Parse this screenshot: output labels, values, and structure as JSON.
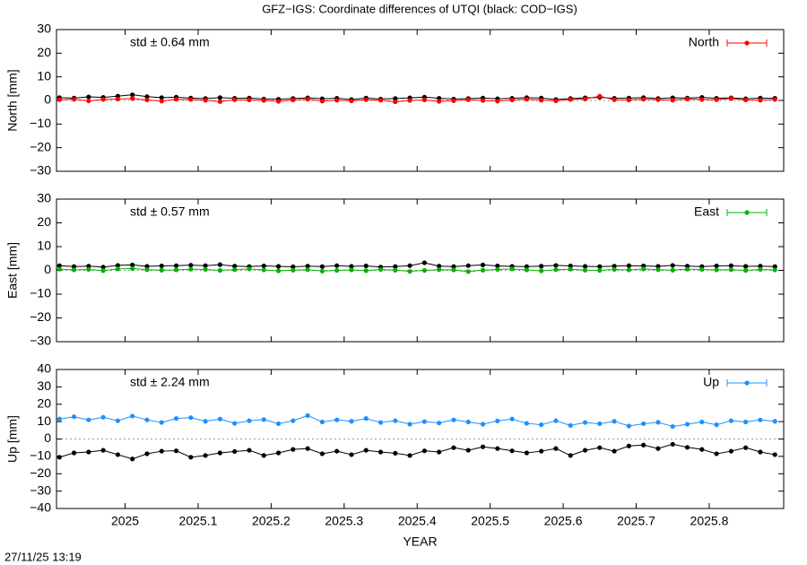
{
  "title": "GFZ−IGS: Coordinate differences of UTQI (black: COD−IGS)",
  "footer": "27/11/25 13:19",
  "chart_data": [
    {
      "type": "line",
      "y_label": "North [mm]",
      "annotation": "std ± 0.64 mm",
      "legend": "top-right",
      "zero_line": true,
      "xlim": [
        2024.906,
        2025.902
      ],
      "xticks": [
        2025,
        2025.1,
        2025.2,
        2025.3,
        2025.4,
        2025.5,
        2025.6,
        2025.7,
        2025.8
      ],
      "ylim": [
        -30,
        30
      ],
      "yticks": [
        30,
        20,
        10,
        0,
        {
          "value": -10,
          "label": "−10"
        },
        {
          "value": -20,
          "label": "−20"
        },
        {
          "value": -30,
          "label": "−30"
        }
      ],
      "x": [
        2024.91,
        2024.93,
        2024.95,
        2024.97,
        2024.99,
        2025.01,
        2025.03,
        2025.05,
        2025.07,
        2025.09,
        2025.11,
        2025.13,
        2025.15,
        2025.17,
        2025.19,
        2025.21,
        2025.23,
        2025.25,
        2025.27,
        2025.29,
        2025.31,
        2025.33,
        2025.35,
        2025.37,
        2025.39,
        2025.41,
        2025.43,
        2025.45,
        2025.47,
        2025.49,
        2025.51,
        2025.53,
        2025.55,
        2025.57,
        2025.59,
        2025.61,
        2025.63,
        2025.65,
        2025.67,
        2025.69,
        2025.71,
        2025.73,
        2025.75,
        2025.77,
        2025.79,
        2025.81,
        2025.83,
        2025.85,
        2025.87,
        2025.89
      ],
      "series": [
        {
          "color": "#000000",
          "values": [
            1.2,
            1.0,
            1.5,
            1.3,
            1.8,
            2.4,
            1.6,
            1.2,
            1.4,
            1.0,
            0.8,
            1.2,
            0.9,
            1.0,
            0.6,
            0.5,
            0.8,
            1.1,
            0.7,
            0.9,
            0.4,
            1.0,
            0.6,
            0.8,
            1.1,
            1.4,
            0.9,
            0.6,
            0.8,
            1.0,
            0.7,
            0.9,
            1.2,
            1.0,
            0.4,
            0.8,
            1.1,
            1.3,
            0.9,
            1.0,
            1.2,
            0.8,
            1.1,
            1.0,
            1.3,
            0.9,
            1.1,
            0.7,
            1.0,
            0.9
          ]
        },
        {
          "name": "North",
          "color": "#ff0000",
          "values": [
            0.3,
            0.5,
            -0.2,
            0.4,
            0.6,
            0.8,
            0.2,
            -0.3,
            0.5,
            0.4,
            0.1,
            -0.5,
            0.3,
            0.2,
            0.0,
            -0.4,
            0.2,
            0.5,
            -0.3,
            0.1,
            -0.2,
            0.3,
            0.1,
            -0.6,
            0.0,
            0.2,
            -0.4,
            -0.1,
            0.3,
            0.0,
            -0.3,
            0.2,
            0.5,
            0.1,
            -0.2,
            0.4,
            0.6,
            1.8,
            0.3,
            0.2,
            0.5,
            0.3,
            0.1,
            0.6,
            0.4,
            0.3,
            0.8,
            0.2,
            0.1,
            0.4
          ]
        }
      ]
    },
    {
      "type": "line",
      "y_label": "East [mm]",
      "annotation": "std ± 0.57 mm",
      "legend": "top-right",
      "zero_line": true,
      "xlim": [
        2024.906,
        2025.902
      ],
      "xticks": [
        2025,
        2025.1,
        2025.2,
        2025.3,
        2025.4,
        2025.5,
        2025.6,
        2025.7,
        2025.8
      ],
      "ylim": [
        -30,
        30
      ],
      "yticks": [
        30,
        20,
        10,
        0,
        {
          "value": -10,
          "label": "−10"
        },
        {
          "value": -20,
          "label": "−20"
        },
        {
          "value": -30,
          "label": "−30"
        }
      ],
      "x": [
        2024.91,
        2024.93,
        2024.95,
        2024.97,
        2024.99,
        2025.01,
        2025.03,
        2025.05,
        2025.07,
        2025.09,
        2025.11,
        2025.13,
        2025.15,
        2025.17,
        2025.19,
        2025.21,
        2025.23,
        2025.25,
        2025.27,
        2025.29,
        2025.31,
        2025.33,
        2025.35,
        2025.37,
        2025.39,
        2025.41,
        2025.43,
        2025.45,
        2025.47,
        2025.49,
        2025.51,
        2025.53,
        2025.55,
        2025.57,
        2025.59,
        2025.61,
        2025.63,
        2025.65,
        2025.67,
        2025.69,
        2025.71,
        2025.73,
        2025.75,
        2025.77,
        2025.79,
        2025.81,
        2025.83,
        2025.85,
        2025.87,
        2025.89
      ],
      "series": [
        {
          "color": "#000000",
          "values": [
            2.0,
            1.6,
            1.8,
            1.4,
            2.1,
            2.3,
            1.7,
            1.9,
            2.0,
            2.2,
            2.0,
            2.4,
            1.8,
            1.6,
            1.9,
            1.7,
            1.5,
            1.8,
            1.6,
            2.0,
            1.7,
            1.9,
            1.4,
            1.6,
            2.0,
            3.2,
            1.8,
            1.6,
            2.0,
            2.3,
            1.9,
            1.7,
            1.6,
            1.8,
            2.1,
            1.9,
            1.7,
            1.6,
            1.8,
            2.0,
            1.9,
            1.7,
            2.1,
            1.8,
            1.6,
            1.9,
            2.0,
            1.7,
            1.8,
            1.6
          ]
        },
        {
          "name": "East",
          "color": "#00b400",
          "values": [
            0.5,
            0.2,
            0.4,
            -0.1,
            0.6,
            0.8,
            0.3,
            0.1,
            0.2,
            0.5,
            0.4,
            0.0,
            0.3,
            0.6,
            0.2,
            -0.2,
            0.1,
            0.3,
            -0.3,
            0.0,
            0.2,
            -0.1,
            0.4,
            0.1,
            -0.4,
            0.0,
            0.3,
            0.2,
            -0.5,
            0.1,
            0.4,
            0.6,
            0.2,
            -0.2,
            0.3,
            0.5,
            0.1,
            0.0,
            0.4,
            0.2,
            0.6,
            0.3,
            0.1,
            0.5,
            0.4,
            0.2,
            0.3,
            0.0,
            0.4,
            0.2
          ]
        }
      ]
    },
    {
      "type": "line",
      "y_label": "Up [mm]",
      "x_label": "YEAR",
      "annotation": "std ± 2.24 mm",
      "legend": "top-right",
      "zero_line": true,
      "xlim": [
        2024.906,
        2025.902
      ],
      "xticks": [
        2025,
        2025.1,
        2025.2,
        2025.3,
        2025.4,
        2025.5,
        2025.6,
        2025.7,
        2025.8
      ],
      "ylim": [
        -40,
        40
      ],
      "yticks": [
        40,
        30,
        20,
        10,
        0,
        {
          "value": -10,
          "label": "−10"
        },
        {
          "value": -20,
          "label": "−20"
        },
        {
          "value": -30,
          "label": "−30"
        },
        {
          "value": -40,
          "label": "−40"
        }
      ],
      "x": [
        2024.91,
        2024.93,
        2024.95,
        2024.97,
        2024.99,
        2025.01,
        2025.03,
        2025.05,
        2025.07,
        2025.09,
        2025.11,
        2025.13,
        2025.15,
        2025.17,
        2025.19,
        2025.21,
        2025.23,
        2025.25,
        2025.27,
        2025.29,
        2025.31,
        2025.33,
        2025.35,
        2025.37,
        2025.39,
        2025.41,
        2025.43,
        2025.45,
        2025.47,
        2025.49,
        2025.51,
        2025.53,
        2025.55,
        2025.57,
        2025.59,
        2025.61,
        2025.63,
        2025.65,
        2025.67,
        2025.69,
        2025.71,
        2025.73,
        2025.75,
        2025.77,
        2025.79,
        2025.81,
        2025.83,
        2025.85,
        2025.87,
        2025.89
      ],
      "series": [
        {
          "color": "#000000",
          "values": [
            -10.5,
            -8.0,
            -7.5,
            -6.5,
            -9.0,
            -11.5,
            -8.5,
            -7.0,
            -6.8,
            -10.5,
            -9.5,
            -8.0,
            -7.2,
            -6.5,
            -9.5,
            -8.0,
            -6.0,
            -5.5,
            -8.5,
            -7.0,
            -9.0,
            -6.5,
            -7.5,
            -8.2,
            -9.5,
            -6.8,
            -7.5,
            -5.0,
            -6.5,
            -4.5,
            -5.5,
            -6.8,
            -8.0,
            -7.0,
            -5.5,
            -9.5,
            -6.5,
            -5.0,
            -7.0,
            -4.0,
            -3.5,
            -5.5,
            -3.0,
            -4.8,
            -6.0,
            -8.5,
            -7.0,
            -5.0,
            -7.5,
            -9.0
          ]
        },
        {
          "name": "Up",
          "color": "#1e90ff",
          "values": [
            11.5,
            12.8,
            11.0,
            12.5,
            10.5,
            13.2,
            11.0,
            9.5,
            11.8,
            12.3,
            10.2,
            11.5,
            9.0,
            10.5,
            11.2,
            8.8,
            10.5,
            13.5,
            9.8,
            11.0,
            10.2,
            11.8,
            9.5,
            10.5,
            8.5,
            10.0,
            9.2,
            11.0,
            9.8,
            8.5,
            10.4,
            11.5,
            9.0,
            8.2,
            10.5,
            7.8,
            9.5,
            8.8,
            10.2,
            7.5,
            8.8,
            9.6,
            7.2,
            8.5,
            9.8,
            8.2,
            10.5,
            9.8,
            11.0,
            10.2
          ]
        }
      ]
    }
  ]
}
